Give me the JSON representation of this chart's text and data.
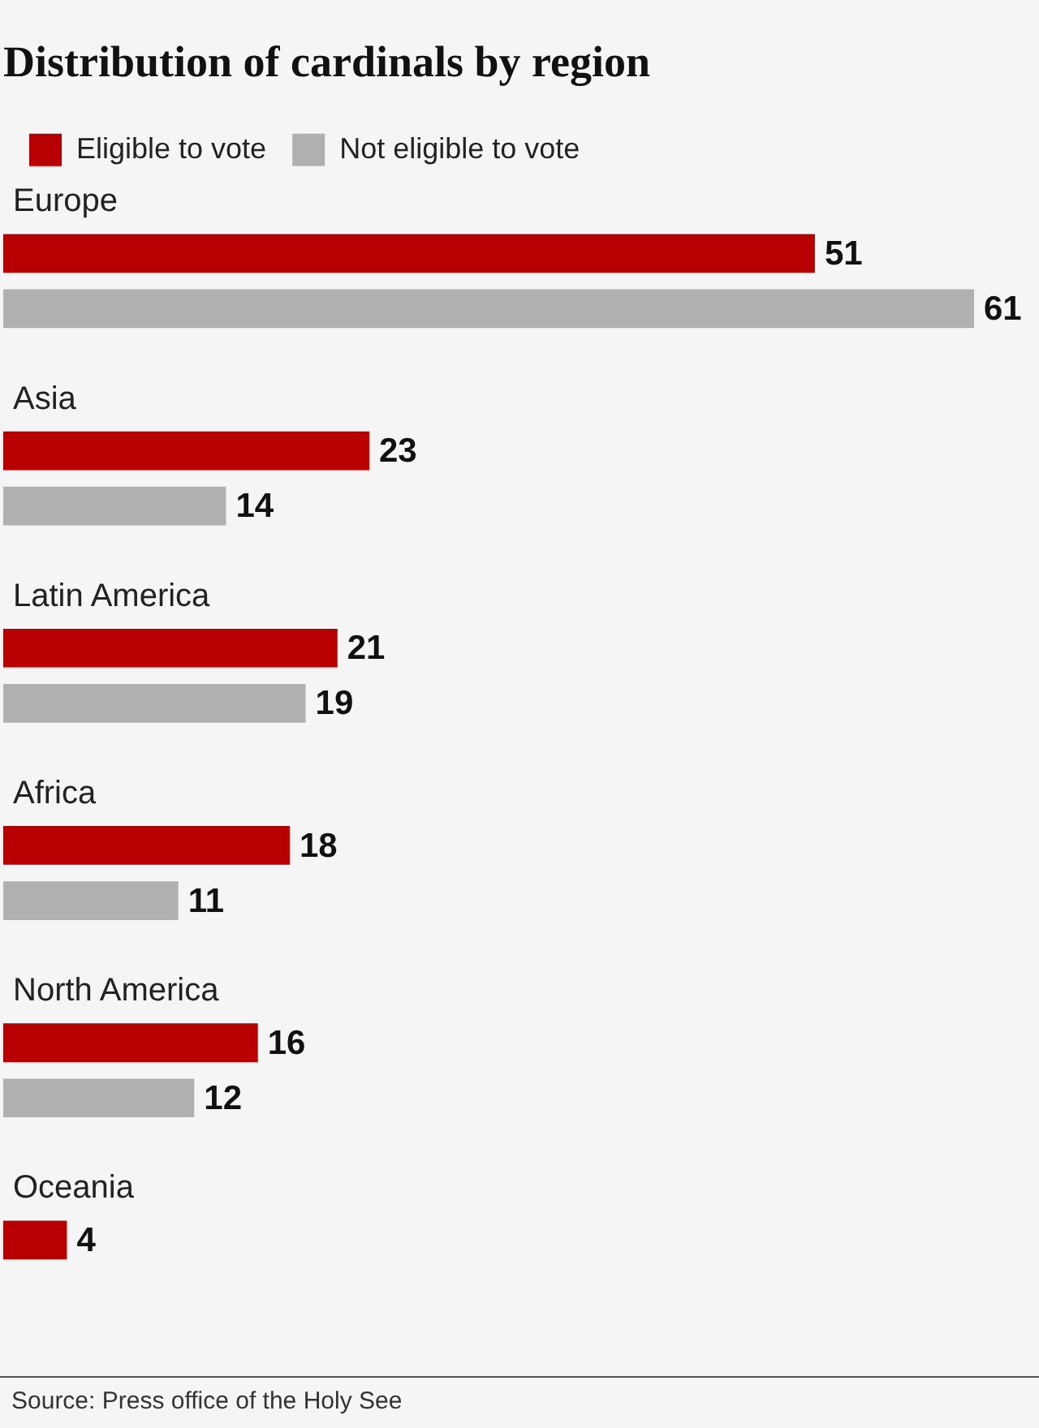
{
  "chart_data": {
    "type": "bar",
    "orientation": "horizontal",
    "title": "Distribution of cardinals by region",
    "categories": [
      "Europe",
      "Asia",
      "Latin America",
      "Africa",
      "North America",
      "Oceania"
    ],
    "series": [
      {
        "name": "Eligible to vote",
        "color": "#b80000",
        "values": [
          51,
          23,
          21,
          18,
          16,
          4
        ]
      },
      {
        "name": "Not eligible to vote",
        "color": "#b0b0b0",
        "values": [
          61,
          14,
          19,
          11,
          12,
          null
        ]
      }
    ],
    "data_labels": true,
    "legend": "top left",
    "tick_labels": "y",
    "annotations": [
      "Source: Press office of the Holy See"
    ]
  }
}
